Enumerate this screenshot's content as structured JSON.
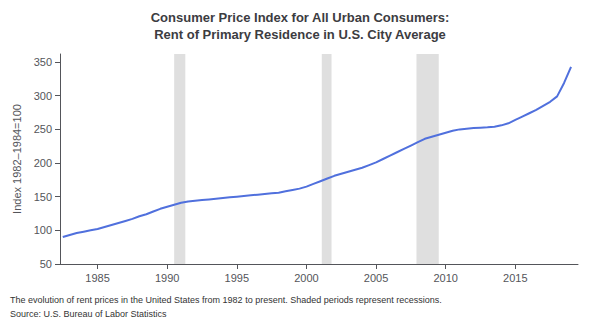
{
  "chart_data": {
    "type": "line",
    "title": "Consumer Price Index for All Urban Consumers:\nRent of Primary Residence in U.S. City Average",
    "y_label": "Index 1982–1984=100",
    "annotations": [
      "The evolution of rent prices in the United States from 1982 to present. Shaded periods represent recessions.",
      "Source: U.S. Bureau of Labor Statistics"
    ],
    "x": [
      1982.5,
      1983.0,
      1983.5,
      1984.0,
      1984.5,
      1985.0,
      1985.5,
      1986.0,
      1986.5,
      1987.0,
      1987.5,
      1988.0,
      1988.5,
      1989.0,
      1989.5,
      1990.0,
      1990.5,
      1991.0,
      1991.5,
      1992.0,
      1992.5,
      1993.0,
      1993.5,
      1994.0,
      1994.5,
      1995.0,
      1995.5,
      1996.0,
      1996.5,
      1997.0,
      1997.5,
      1998.0,
      1998.5,
      1999.0,
      1999.5,
      2000.0,
      2000.5,
      2001.0,
      2001.5,
      2002.0,
      2002.5,
      2003.0,
      2003.5,
      2004.0,
      2004.5,
      2005.0,
      2005.5,
      2006.0,
      2006.5,
      2007.0,
      2007.5,
      2008.0,
      2008.5,
      2009.0,
      2009.5,
      2010.0,
      2010.5,
      2011.0,
      2011.5,
      2012.0,
      2012.5,
      2013.0,
      2013.5,
      2014.0,
      2014.5,
      2015.0,
      2015.5,
      2016.0,
      2016.5,
      2017.0,
      2017.5,
      2018.0,
      2018.5,
      2019.0
    ],
    "values": [
      90,
      93,
      96,
      98,
      100,
      102,
      105,
      108,
      111,
      114,
      117,
      121,
      124,
      128,
      132,
      135,
      138,
      141,
      143,
      144,
      145,
      146,
      147,
      148,
      149,
      150,
      151,
      152,
      153,
      154,
      155,
      156,
      158,
      160,
      162,
      165,
      169,
      173,
      177,
      181,
      184,
      187,
      190,
      193,
      197,
      201,
      206,
      211,
      216,
      221,
      226,
      231,
      236,
      239,
      242,
      245,
      248,
      250,
      251,
      252,
      252.5,
      253,
      254,
      256,
      259,
      264,
      269,
      274,
      279,
      285,
      291,
      299,
      319,
      343
    ],
    "recessions": [
      [
        1990.5,
        1991.3
      ],
      [
        2001.1,
        2001.8
      ],
      [
        2007.9,
        2009.5
      ]
    ],
    "xlim": [
      1982.3,
      2019.5
    ],
    "xticks": [
      1985,
      1990,
      1995,
      2000,
      2005,
      2010,
      2015
    ],
    "ylim": [
      50,
      362
    ],
    "yticks": [
      50,
      100,
      150,
      200,
      250,
      300,
      350
    ],
    "grid": false
  }
}
